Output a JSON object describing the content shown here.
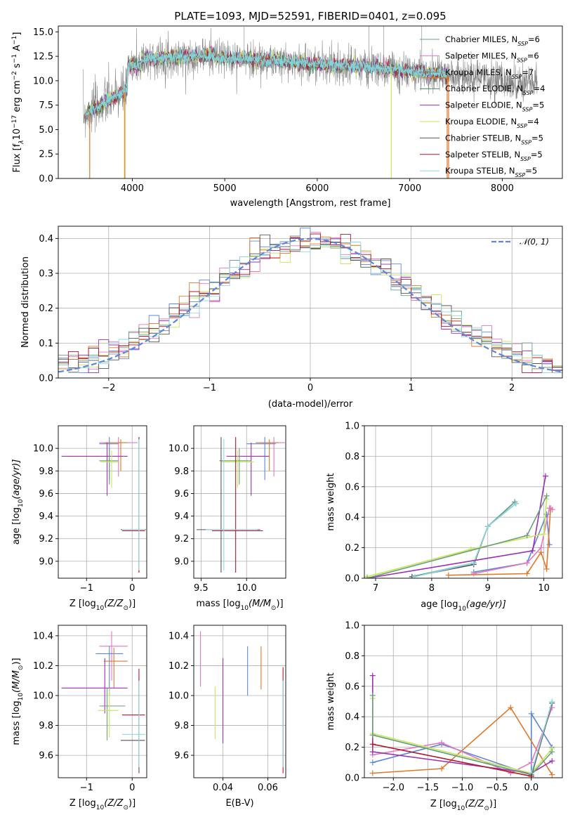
{
  "colors": [
    "#6b9e7f",
    "#e377c2",
    "#7f7f7f",
    "#3a8a5a",
    "#9b2fb5",
    "#c8e65a",
    "#555555",
    "#b2182b",
    "#8fd8e0"
  ],
  "colors_extra": {
    "royal": "#5f86d8",
    "orange": "#e0782a",
    "purple": "#9b2fb5",
    "lime": "#c8e65a",
    "pink": "#e377c2",
    "teal": "#5fb0b8",
    "gray": "#555555",
    "red": "#b2182b",
    "green": "#6b9e7f"
  },
  "chart_data": [
    {
      "id": "spectrum",
      "type": "line",
      "title": "PLATE=1093, MJD=52591, FIBERID=0401, z=0.095",
      "xlabel": "wavelength [Angstrom, rest frame]",
      "ylabel_parts": {
        "a": "Flux [f",
        "b": "λ",
        "c": "10",
        "d": "−17",
        "e": " erg cm",
        "f": "−2",
        "g": " s",
        "h": "−1",
        "i": " A",
        "j": "−1",
        "k": "]"
      },
      "xlim": [
        3200,
        8650
      ],
      "ylim": [
        0,
        15.6
      ],
      "xticks": [
        4000,
        5000,
        6000,
        7000,
        8000
      ],
      "yticks": [
        0.0,
        2.5,
        5.0,
        7.5,
        10.0,
        12.5,
        15.0
      ],
      "ytick_labels": [
        "0.0",
        "2.5",
        "5.0",
        "7.5",
        "10.0",
        "12.5",
        "15.0"
      ],
      "observed_x_range": [
        3470,
        8380
      ],
      "legend": [
        {
          "text": "Chabrier MILES, N",
          "sub": "SSP",
          "val": "=6"
        },
        {
          "text": "Salpeter MILES, N",
          "sub": "SSP",
          "val": "=6"
        },
        {
          "text": "Kroupa MILES, N",
          "sub": "SSP",
          "val": "=7"
        },
        {
          "text": "Chabrier ELODIE, N",
          "sub": "SSP",
          "val": "=4"
        },
        {
          "text": "Salpeter ELODIE, N",
          "sub": "SSP",
          "val": "=5"
        },
        {
          "text": "Kroupa ELODIE, N",
          "sub": "SSP",
          "val": "=4"
        },
        {
          "text": "Chabrier STELIB, N",
          "sub": "SSP",
          "val": "=5"
        },
        {
          "text": "Salpeter STELIB, N",
          "sub": "SSP",
          "val": "=5"
        },
        {
          "text": "Kroupa STELIB, N",
          "sub": "SSP",
          "val": "=5"
        }
      ],
      "legend_colors": [
        "#6b9e7f",
        "#e377c2",
        "#7f7f7f",
        "#3a8a5a",
        "#9b2fb5",
        "#c8e65a",
        "#555555",
        "#b2182b",
        "#8fd8e0"
      ]
    },
    {
      "id": "residuals",
      "type": "step",
      "xlabel": "(data-model)/error",
      "ylabel": "Normed distribution",
      "xlim": [
        -2.5,
        2.5
      ],
      "ylim": [
        0,
        0.435
      ],
      "xticks": [
        -2,
        -1,
        0,
        1,
        2
      ],
      "xtick_labels": [
        "−2",
        "−1",
        "0",
        "1",
        "2"
      ],
      "yticks": [
        0.0,
        0.1,
        0.2,
        0.3,
        0.4
      ],
      "ytick_labels": [
        "0.0",
        "0.1",
        "0.2",
        "0.3",
        "0.4"
      ],
      "bin_width": 0.1,
      "legend": {
        "text": "𝒩(0, 1)"
      },
      "gaussian_color": "#5f86d8"
    },
    {
      "id": "age_vs_Z",
      "type": "errorbar",
      "xlabel": "Z [log",
      "xlabel_sub": "10",
      "xlabel_rest": "(Z/Z",
      "xlabel_end": ")]",
      "ylabel": "age  [log",
      "ylabel_sub": "10",
      "ylabel_rest": "(age/yr)]",
      "xlim": [
        -1.62,
        0.32
      ],
      "ylim": [
        8.85,
        10.2
      ],
      "xticks": [
        -1,
        0
      ],
      "xtick_labels": [
        "−1",
        "0"
      ],
      "yticks": [
        9.0,
        9.2,
        9.4,
        9.6,
        9.8,
        10.0
      ],
      "ytick_labels": [
        "9.0",
        "9.2",
        "9.4",
        "9.6",
        "9.8",
        "10.0"
      ],
      "points": [
        {
          "x": -0.3,
          "y": 10.05,
          "xe": [
            -0.72,
            0.12
          ],
          "ye": [
            9.75,
            10.1
          ],
          "c": "#e377c2"
        },
        {
          "x": -0.5,
          "y": 10.04,
          "xe": [
            -0.72,
            -0.3
          ],
          "ye": [
            9.72,
            10.1
          ],
          "c": "#5f86d8"
        },
        {
          "x": -0.25,
          "y": 10.05,
          "xe": [
            -0.62,
            -0.1
          ],
          "ye": [
            9.8,
            10.08
          ],
          "c": "#e0782a"
        },
        {
          "x": -0.55,
          "y": 9.93,
          "xe": [
            -1.55,
            -0.1
          ],
          "ye": [
            9.58,
            10.05
          ],
          "c": "#9b2fb5"
        },
        {
          "x": -0.5,
          "y": 9.89,
          "xe": [
            -0.72,
            -0.3
          ],
          "ye": [
            9.68,
            10.0
          ],
          "c": "#6b9e7f"
        },
        {
          "x": -0.45,
          "y": 9.88,
          "xe": [
            -0.7,
            -0.28
          ],
          "ye": [
            9.65,
            9.98
          ],
          "c": "#c8e65a"
        },
        {
          "x": 0.15,
          "y": 9.28,
          "xe": [
            -0.25,
            0.3
          ],
          "ye": [
            8.9,
            10.1
          ],
          "c": "#555555"
        },
        {
          "x": 0.15,
          "y": 9.27,
          "xe": [
            -0.22,
            0.28
          ],
          "ye": [
            8.9,
            10.1
          ],
          "c": "#b2182b"
        },
        {
          "x": 0.15,
          "y": 9.28,
          "xe": [
            -0.22,
            0.28
          ],
          "ye": [
            8.92,
            10.08
          ],
          "c": "#8fd8e0"
        }
      ]
    },
    {
      "id": "age_vs_mass",
      "type": "errorbar",
      "xlabel": "mass [log",
      "xlabel_sub": "10",
      "xlabel_rest": "(M/M",
      "xlabel_end": ")]",
      "xlim": [
        9.42,
        10.43
      ],
      "ylim": [
        8.85,
        10.2
      ],
      "xticks": [
        9.5,
        10.0
      ],
      "xtick_labels": [
        "9.5",
        "10.0"
      ],
      "yticks": [
        9.0,
        9.2,
        9.4,
        9.6,
        9.8,
        10.0
      ],
      "ytick_labels": [
        "9.0",
        "9.2",
        "9.4",
        "9.6",
        "9.8",
        "10.0"
      ],
      "points": [
        {
          "x": 10.3,
          "y": 10.05,
          "xe": [
            10.15,
            10.42
          ],
          "ye": [
            9.75,
            10.1
          ],
          "c": "#e377c2"
        },
        {
          "x": 10.2,
          "y": 10.04,
          "xe": [
            10.0,
            10.32
          ],
          "ye": [
            9.72,
            10.1
          ],
          "c": "#5f86d8"
        },
        {
          "x": 10.25,
          "y": 10.05,
          "xe": [
            10.1,
            10.35
          ],
          "ye": [
            9.8,
            10.08
          ],
          "c": "#e0782a"
        },
        {
          "x": 10.05,
          "y": 9.93,
          "xe": [
            9.78,
            10.25
          ],
          "ye": [
            9.58,
            10.05
          ],
          "c": "#9b2fb5"
        },
        {
          "x": 9.92,
          "y": 9.89,
          "xe": [
            9.7,
            10.05
          ],
          "ye": [
            9.68,
            10.0
          ],
          "c": "#6b9e7f"
        },
        {
          "x": 9.9,
          "y": 9.88,
          "xe": [
            9.72,
            10.08
          ],
          "ye": [
            9.65,
            9.98
          ],
          "c": "#c8e65a"
        },
        {
          "x": 9.72,
          "y": 9.28,
          "xe": [
            9.45,
            10.15
          ],
          "ye": [
            8.9,
            10.1
          ],
          "c": "#555555"
        },
        {
          "x": 9.88,
          "y": 9.27,
          "xe": [
            9.62,
            10.18
          ],
          "ye": [
            8.9,
            10.1
          ],
          "c": "#b2182b"
        },
        {
          "x": 9.75,
          "y": 9.28,
          "xe": [
            9.55,
            10.12
          ],
          "ye": [
            8.92,
            10.08
          ],
          "c": "#8fd8e0"
        }
      ]
    },
    {
      "id": "weight_vs_age",
      "type": "line",
      "xlabel": "age  [log",
      "xlabel_sub": "10",
      "xlabel_rest": "(age/yr)]",
      "ylabel": "mass weight",
      "xlim": [
        6.8,
        10.33
      ],
      "ylim": [
        0,
        1.0
      ],
      "xticks": [
        7,
        8,
        9,
        10
      ],
      "xtick_labels": [
        "7",
        "8",
        "9",
        "10"
      ],
      "yticks": [
        0.0,
        0.2,
        0.4,
        0.6,
        0.8,
        1.0
      ],
      "ytick_labels": [
        "0.0",
        "0.2",
        "0.4",
        "0.6",
        "0.8",
        "1.0"
      ],
      "series": [
        {
          "c": "#5f9e7f",
          "x": [
            7.65,
            8.75,
            9.0,
            9.48
          ],
          "y": [
            0.01,
            0.1,
            0.34,
            0.5
          ]
        },
        {
          "c": "#555555",
          "x": [
            7.65,
            8.75,
            9.0,
            9.5
          ],
          "y": [
            0.01,
            0.09,
            0.34,
            0.49
          ]
        },
        {
          "c": "#8fd8e0",
          "x": [
            7.7,
            8.75,
            9.0,
            9.5
          ],
          "y": [
            0.01,
            0.1,
            0.34,
            0.49
          ]
        },
        {
          "c": "#5f86d8",
          "x": [
            8.75,
            9.7,
            10.05,
            10.1
          ],
          "y": [
            0.04,
            0.1,
            0.42,
            0.22
          ]
        },
        {
          "c": "#e0782a",
          "x": [
            8.3,
            9.7,
            9.95,
            10.05,
            10.12
          ],
          "y": [
            0.02,
            0.03,
            0.17,
            0.06,
            0.46
          ]
        },
        {
          "c": "#e377c2",
          "x": [
            8.75,
            9.7,
            9.95,
            10.1,
            10.15
          ],
          "y": [
            0.03,
            0.1,
            0.2,
            0.46,
            0.45
          ]
        },
        {
          "c": "#9b2fb5",
          "x": [
            6.85,
            9.8,
            10.03
          ],
          "y": [
            0.0,
            0.18,
            0.67
          ]
        },
        {
          "c": "#c8e65a",
          "x": [
            6.85,
            8.7,
            10.0,
            10.05
          ],
          "y": [
            0.01,
            0.19,
            0.29,
            0.52
          ]
        },
        {
          "c": "#6b9e7f",
          "x": [
            6.85,
            9.7,
            10.05
          ],
          "y": [
            0.0,
            0.28,
            0.54
          ]
        }
      ]
    },
    {
      "id": "mass_vs_Z",
      "type": "errorbar",
      "xlabel": "Z [log",
      "xlabel_sub": "10",
      "xlabel_rest": "(Z/Z",
      "xlabel_end": ")]",
      "ylabel": "mass [log",
      "ylabel_sub": "10",
      "ylabel_rest": "(M/M",
      "ylabel_end": ")]",
      "xlim": [
        -1.62,
        0.32
      ],
      "ylim": [
        9.45,
        10.47
      ],
      "xticks": [
        -1,
        0
      ],
      "xtick_labels": [
        "−1",
        "0"
      ],
      "yticks": [
        9.6,
        9.8,
        10.0,
        10.2,
        10.4
      ],
      "ytick_labels": [
        "9.6",
        "9.8",
        "10.0",
        "10.2",
        "10.4"
      ],
      "points": [
        {
          "x": -0.45,
          "y": 10.33,
          "xe": [
            -0.72,
            -0.1
          ],
          "ye": [
            10.1,
            10.43
          ],
          "c": "#e377c2"
        },
        {
          "x": -0.5,
          "y": 10.28,
          "xe": [
            -0.8,
            -0.2
          ],
          "ye": [
            10.0,
            10.33
          ],
          "c": "#5f86d8"
        },
        {
          "x": -0.4,
          "y": 10.23,
          "xe": [
            -0.62,
            -0.1
          ],
          "ye": [
            10.05,
            10.32
          ],
          "c": "#e0782a"
        },
        {
          "x": -0.6,
          "y": 10.05,
          "xe": [
            -1.55,
            -0.1
          ],
          "ye": [
            9.88,
            10.25
          ],
          "c": "#9b2fb5"
        },
        {
          "x": -0.55,
          "y": 9.93,
          "xe": [
            -0.72,
            -0.15
          ],
          "ye": [
            9.7,
            10.05
          ],
          "c": "#6b9e7f"
        },
        {
          "x": -0.5,
          "y": 9.9,
          "xe": [
            -0.75,
            -0.3
          ],
          "ye": [
            9.72,
            10.05
          ],
          "c": "#c8e65a"
        },
        {
          "x": 0.15,
          "y": 9.7,
          "xe": [
            -0.25,
            0.28
          ],
          "ye": [
            9.48,
            10.12
          ],
          "c": "#555555"
        },
        {
          "x": 0.15,
          "y": 9.87,
          "xe": [
            -0.22,
            0.28
          ],
          "ye": [
            9.52,
            10.18
          ],
          "c": "#b2182b"
        },
        {
          "x": 0.15,
          "y": 9.74,
          "xe": [
            -0.22,
            0.28
          ],
          "ye": [
            9.52,
            10.1
          ],
          "c": "#8fd8e0"
        }
      ]
    },
    {
      "id": "mass_vs_ebv",
      "type": "errorbar",
      "xlabel": "E(B-V)",
      "xlim": [
        0.027,
        0.068
      ],
      "ylim": [
        9.45,
        10.47
      ],
      "xticks": [
        0.04,
        0.06
      ],
      "xtick_labels": [
        "0.04",
        "0.06"
      ],
      "yticks": [
        9.6,
        9.8,
        10.0,
        10.2,
        10.4
      ],
      "ytick_labels": [
        "9.6",
        "9.8",
        "10.0",
        "10.2",
        "10.4"
      ],
      "points": [
        {
          "x": 0.03,
          "ye": [
            10.06,
            10.43
          ],
          "c": "#e377c2"
        },
        {
          "x": 0.0365,
          "ye": [
            9.71,
            10.06
          ],
          "c": "#c8e65a"
        },
        {
          "x": 0.04,
          "ye": [
            9.68,
            10.25
          ],
          "c": "#9b2fb5"
        },
        {
          "x": 0.051,
          "ye": [
            10.0,
            10.33
          ],
          "c": "#5f86d8"
        },
        {
          "x": 0.057,
          "ye": [
            10.04,
            10.33
          ],
          "c": "#e0782a"
        },
        {
          "x": 0.0668,
          "ye": [
            9.48,
            10.19
          ],
          "c": "#b2182b"
        },
        {
          "x": 0.0668,
          "ye": [
            9.52,
            10.1
          ],
          "c": "#8fd8e0"
        }
      ]
    },
    {
      "id": "weight_vs_Z",
      "type": "line",
      "xlabel": "Z [log",
      "xlabel_sub": "10",
      "xlabel_rest": "(Z/Z",
      "xlabel_end": ")]",
      "ylabel": "mass weight",
      "xlim": [
        -2.42,
        0.45
      ],
      "ylim": [
        0,
        1.0
      ],
      "xticks": [
        -2.0,
        -1.5,
        -1.0,
        -0.5,
        0.0
      ],
      "xtick_labels": [
        "−2.0",
        "−1.5",
        "−1.0",
        "−0.5",
        "0.0"
      ],
      "yticks": [
        0.0,
        0.2,
        0.4,
        0.6,
        0.8,
        1.0
      ],
      "ytick_labels": [
        "0.0",
        "0.2",
        "0.4",
        "0.6",
        "0.8",
        "1.0"
      ],
      "series": [
        {
          "c": "#5f86d8",
          "x": [
            -2.3,
            -1.3,
            0.0,
            0.0,
            0.3
          ],
          "y": [
            0.1,
            0.22,
            0.02,
            0.42,
            0.2
          ]
        },
        {
          "c": "#e0782a",
          "x": [
            -2.3,
            -1.3,
            -0.3,
            0.3
          ],
          "y": [
            0.03,
            0.06,
            0.46,
            0.02
          ]
        },
        {
          "c": "#e377c2",
          "x": [
            -2.3,
            -1.3,
            -0.3,
            0.0,
            0.3
          ],
          "y": [
            0.15,
            0.23,
            0.03,
            0.1,
            0.46
          ]
        },
        {
          "c": "#9b2fb5",
          "x": [
            -2.3,
            -2.3,
            0.0,
            0.3
          ],
          "y": [
            0.67,
            0.17,
            0.03,
            0.11
          ]
        },
        {
          "c": "#c8e65a",
          "x": [
            -2.3,
            -2.3,
            0.0,
            0.3
          ],
          "y": [
            0.52,
            0.29,
            0.03,
            0.19
          ]
        },
        {
          "c": "#6b9e7f",
          "x": [
            -2.3,
            -2.3,
            0.0,
            0.3
          ],
          "y": [
            0.54,
            0.28,
            0.02,
            0.17
          ]
        },
        {
          "c": "#555555",
          "x": [
            0.0,
            0.3
          ],
          "y": [
            0.01,
            0.49
          ]
        },
        {
          "c": "#8fd8e0",
          "x": [
            0.0,
            0.3
          ],
          "y": [
            0.03,
            0.5
          ]
        },
        {
          "c": "#b2182b",
          "x": [
            -2.3,
            0.0
          ],
          "y": [
            0.22,
            0.01
          ]
        }
      ]
    }
  ]
}
